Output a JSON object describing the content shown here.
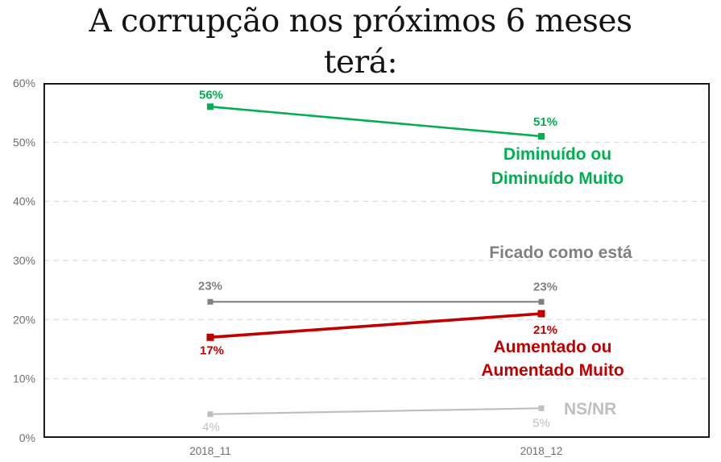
{
  "page": {
    "background": "#FFFFFF"
  },
  "chart_data": {
    "type": "line",
    "title": "A corrupção nos próximos 6 meses terá:",
    "title_lines": [
      "A corrupção nos próximos 6 meses",
      "terá:"
    ],
    "categories": [
      "2018_11",
      "2018_12"
    ],
    "ylim": [
      0,
      60
    ],
    "y_ticks": [
      "0%",
      "10%",
      "20%",
      "30%",
      "40%",
      "50%",
      "60%"
    ],
    "grid": "horizontal-dashed",
    "gridline_color": "#D9D9D9",
    "axis_color": "#000000",
    "tick_label_color": "#6F6F6F",
    "legend_position": "inline-annotations-right",
    "series": [
      {
        "name": "Diminuído ou Diminuído Muito",
        "annotation_lines": [
          "Diminuído ou",
          "Diminuído Muito"
        ],
        "values": [
          56,
          51
        ],
        "data_labels": [
          "56%",
          "51%"
        ],
        "color": "#00AF50"
      },
      {
        "name": "Ficado como está",
        "annotation_lines": [
          "Ficado como está"
        ],
        "values": [
          23,
          23
        ],
        "data_labels": [
          "23%",
          "23%"
        ],
        "color": "#808080"
      },
      {
        "name": "Aumentado ou Aumentado Muito",
        "annotation_lines": [
          "Aumentado ou",
          "Aumentado Muito"
        ],
        "values": [
          17,
          21
        ],
        "data_labels": [
          "17%",
          "21%"
        ],
        "color": "#C00000"
      },
      {
        "name": "NS/NR",
        "annotation_lines": [
          "NS/NR"
        ],
        "values": [
          4,
          5
        ],
        "data_labels": [
          "4%",
          "5%"
        ],
        "color": "#BFBFBF"
      }
    ]
  }
}
